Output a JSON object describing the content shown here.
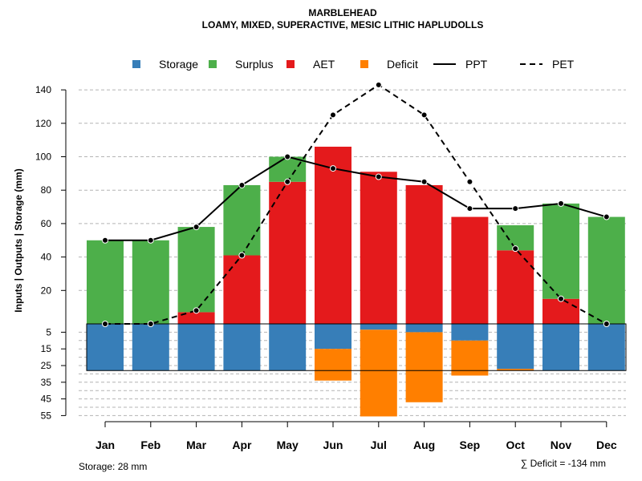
{
  "chart_data": {
    "type": "bar",
    "title": "MARBLEHEAD",
    "subtitle": "LOAMY, MIXED, SUPERACTIVE, MESIC LITHIC HAPLUDOLLS",
    "ylabel": "Inputs | Outputs | Storage    (mm)",
    "categories": [
      "Jan",
      "Feb",
      "Mar",
      "Apr",
      "May",
      "Jun",
      "Jul",
      "Aug",
      "Sep",
      "Oct",
      "Nov",
      "Dec"
    ],
    "y_ticks_upper": [
      "20",
      "40",
      "60",
      "80",
      "100",
      "120",
      "140"
    ],
    "y_ticks_lower": [
      "5",
      "15",
      "25",
      "35",
      "45",
      "55"
    ],
    "ylim_upper": [
      0,
      150
    ],
    "ylim_lower": [
      0,
      58
    ],
    "storage_capacity": 28,
    "legend": [
      {
        "label": "Storage",
        "kind": "box",
        "color": "#377eb8"
      },
      {
        "label": "Surplus",
        "kind": "box",
        "color": "#4daf4a"
      },
      {
        "label": "AET",
        "kind": "box",
        "color": "#e41a1c"
      },
      {
        "label": "Deficit",
        "kind": "box",
        "color": "#ff7f00"
      },
      {
        "label": "PPT",
        "kind": "solid"
      },
      {
        "label": "PET",
        "kind": "dashed"
      }
    ],
    "series": [
      {
        "name": "AET",
        "color": "#e41a1c",
        "values": [
          0,
          0,
          7,
          41,
          85,
          106,
          91,
          83,
          64,
          44,
          15,
          0
        ]
      },
      {
        "name": "Surplus",
        "color": "#4daf4a",
        "values": [
          50,
          50,
          51,
          42,
          15,
          0,
          0,
          0,
          0,
          15,
          57,
          64
        ]
      },
      {
        "name": "Storage",
        "color": "#377eb8",
        "values": [
          28,
          28,
          28,
          28,
          28,
          15,
          3.5,
          5,
          10,
          27,
          28,
          28
        ]
      },
      {
        "name": "Deficit",
        "color": "#ff7f00",
        "values": [
          0,
          0,
          0,
          0,
          0,
          19,
          52,
          42,
          21,
          1,
          0,
          0
        ]
      },
      {
        "name": "PPT",
        "values": [
          50,
          50,
          58,
          83,
          100,
          93,
          88,
          85,
          69,
          69,
          72,
          64
        ]
      },
      {
        "name": "PET",
        "values": [
          0,
          0,
          8,
          41,
          85,
          125,
          143,
          125,
          85,
          45,
          15,
          0
        ]
      }
    ],
    "storage_note": "Storage: 28 mm",
    "deficit_note": "∑ Deficit = -134 mm"
  }
}
